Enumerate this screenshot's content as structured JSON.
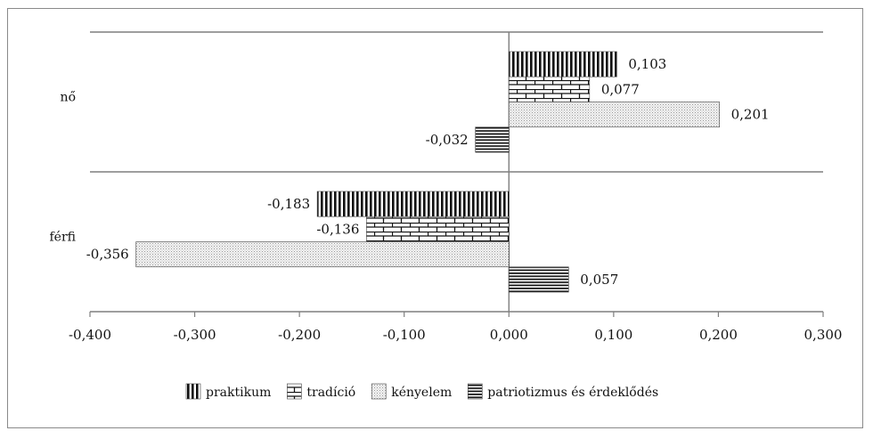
{
  "chart_data": {
    "type": "bar",
    "orientation": "horizontal",
    "categories": [
      "nő",
      "férfi"
    ],
    "series": [
      {
        "name": "praktikum",
        "values": [
          0.103,
          -0.183
        ],
        "labels": [
          "0,103",
          "-0,183"
        ],
        "pattern": "vertical-stripes"
      },
      {
        "name": "tradíció",
        "values": [
          0.077,
          -0.136
        ],
        "labels": [
          "0,077",
          "-0,136"
        ],
        "pattern": "brick"
      },
      {
        "name": "kényelem",
        "values": [
          0.201,
          -0.356
        ],
        "labels": [
          "0,201",
          "-0,356"
        ],
        "pattern": "dots"
      },
      {
        "name": "patriotizmus és érdeklődés",
        "values": [
          -0.032,
          0.057
        ],
        "labels": [
          "-0,032",
          "0,057"
        ],
        "pattern": "horizontal-stripes"
      }
    ],
    "xlim": [
      -0.4,
      0.3
    ],
    "xticks": [
      -0.4,
      -0.3,
      -0.2,
      -0.1,
      0.0,
      0.1,
      0.2,
      0.3
    ],
    "xtick_labels": [
      "-0,400",
      "-0,300",
      "-0,200",
      "-0,100",
      "0,000",
      "0,100",
      "0,200",
      "0,300"
    ],
    "title": "",
    "xlabel": "",
    "ylabel": "",
    "legend": "bottom",
    "grid": "category separators only",
    "colors": {
      "bar_ink": "#111111",
      "axis": "#7f7f7f",
      "frame": "#8a8a8a"
    }
  }
}
